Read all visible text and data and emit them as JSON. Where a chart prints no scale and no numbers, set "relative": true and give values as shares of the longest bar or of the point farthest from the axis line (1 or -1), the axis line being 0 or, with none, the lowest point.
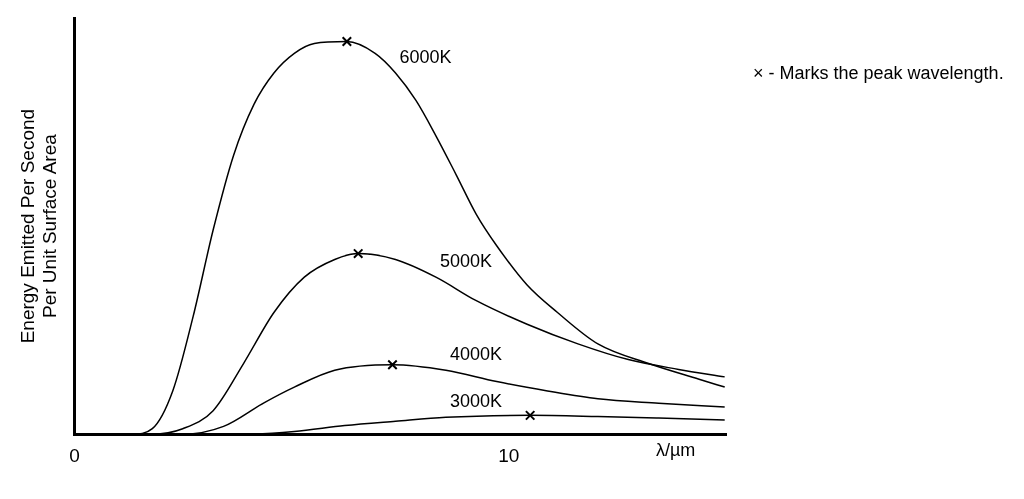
{
  "chart_data": {
    "type": "line",
    "xlabel": "λ/µm",
    "ylabel": "Energy Emitted Per Second\nPer Unit Surface Area",
    "relative": true,
    "xlim": [
      0,
      15
    ],
    "xticks": [
      0,
      10
    ],
    "grid": false,
    "legend": false,
    "marker": "none",
    "line_style": "solid",
    "annotations": [
      "× - Marks the peak wavelength."
    ],
    "series": [
      {
        "name": "6000K",
        "color": "#000000",
        "x": [
          0,
          1.33,
          1.79,
          2.26,
          2.73,
          3.19,
          3.66,
          4.13,
          4.59,
          5.06,
          5.52,
          6.27,
          6.92,
          7.39,
          7.86,
          8.32,
          8.79,
          9.25,
          9.72,
          10.42,
          11.12,
          12.05,
          13.22,
          14.38,
          14.97
        ],
        "values": [
          0,
          0,
          0.014,
          0.11,
          0.3,
          0.52,
          0.71,
          0.84,
          0.92,
          0.97,
          0.995,
          1,
          0.97,
          0.92,
          0.85,
          0.76,
          0.66,
          0.56,
          0.48,
          0.38,
          0.31,
          0.23,
          0.18,
          0.14,
          0.12
        ]
      },
      {
        "name": "5000K",
        "color": "#000000",
        "x": [
          0,
          1.79,
          2.49,
          3.19,
          3.89,
          4.59,
          5.29,
          5.99,
          6.53,
          7.39,
          8.32,
          9.25,
          10.42,
          11.59,
          12.75,
          13.91,
          14.97
        ],
        "values": [
          0,
          0,
          0.014,
          0.06,
          0.18,
          0.31,
          0.4,
          0.445,
          0.46,
          0.445,
          0.4,
          0.34,
          0.28,
          0.23,
          0.19,
          0.165,
          0.146
        ]
      },
      {
        "name": "4000K",
        "color": "#000000",
        "x": [
          0,
          2.49,
          3.43,
          4.36,
          5.06,
          5.99,
          7.32,
          8.55,
          9.72,
          10.89,
          12.05,
          13.45,
          14.97
        ],
        "values": [
          0,
          0,
          0.02,
          0.08,
          0.12,
          0.163,
          0.177,
          0.163,
          0.134,
          0.11,
          0.09,
          0.079,
          0.069
        ]
      },
      {
        "name": "3000K",
        "color": "#000000",
        "x": [
          0,
          3.89,
          5.06,
          6.22,
          7.39,
          8.55,
          10.49,
          12.05,
          13.45,
          14.97
        ],
        "values": [
          0,
          0,
          0.007,
          0.022,
          0.033,
          0.043,
          0.048,
          0.045,
          0.041,
          0.036
        ]
      },
      {
        "type": "scatter",
        "marker": "cross",
        "color": "#000000",
        "x": [
          6.27,
          6.53,
          7.32,
          10.49
        ],
        "values": [
          1,
          0.46,
          0.177,
          0.048
        ]
      }
    ]
  }
}
